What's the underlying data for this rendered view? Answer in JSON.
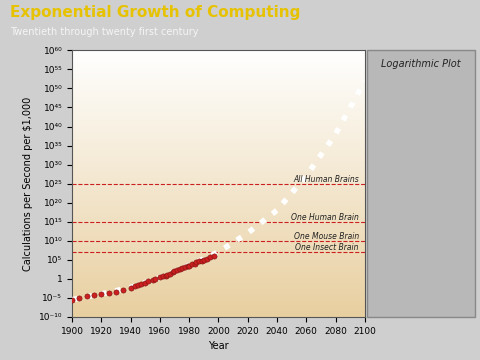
{
  "chart_data": {
    "type": "scatter",
    "title": "Exponential Growth of Computing",
    "subtitle": "Twentieth through twenty first century",
    "panel_title": "Logarithmic Plot",
    "x_label": "Year",
    "y_label": "Calculations per Second per $1,000",
    "log": "y",
    "xlim": [
      1900,
      2100
    ],
    "xticks": [
      1900,
      1920,
      1940,
      1960,
      1980,
      2000,
      2020,
      2040,
      2060,
      2080,
      2100
    ],
    "ylim": [
      1e-10,
      1e+60
    ],
    "yticks": [
      {
        "value": 1e-10,
        "label": "10⁻¹⁰"
      },
      {
        "value": 1e-05,
        "label": "10⁻⁵"
      },
      1,
      {
        "value": 100000.0,
        "label": "10⁵"
      },
      {
        "value": 10000000000.0,
        "label": "10¹⁰"
      },
      {
        "value": 1000000000000000.0,
        "label": "10¹⁵"
      },
      {
        "value": 1e+20,
        "label": "10²⁰"
      },
      {
        "value": 1e+25,
        "label": "10²⁵"
      },
      {
        "value": 1e+30,
        "label": "10³⁰"
      },
      {
        "value": 1e+35,
        "label": "10³⁵"
      },
      {
        "value": 1e+40,
        "label": "10⁴⁰"
      },
      {
        "value": 1e+45,
        "label": "10⁴⁵"
      },
      {
        "value": 1e+50,
        "label": "10⁵⁰"
      },
      {
        "value": 1e+55,
        "label": "10⁵⁵"
      },
      {
        "value": 1e+60,
        "label": "10⁶⁰"
      }
    ],
    "series": [
      {
        "type": "scatter",
        "color": "#cc2020",
        "marker": "circle",
        "x": [
          1900,
          1905,
          1910,
          1915,
          1920,
          1925,
          1930,
          1935,
          1940,
          1943,
          1945,
          1947,
          1950,
          1952,
          1955,
          1957,
          1960,
          1962,
          1964,
          1965,
          1967,
          1969,
          1970,
          1972,
          1974,
          1975,
          1977,
          1979,
          1980,
          1982,
          1984,
          1985,
          1987,
          1989,
          1990,
          1992,
          1994,
          1997
        ],
        "values": [
          3e-06,
          1e-05,
          3e-05,
          5e-05,
          0.0001,
          0.0002,
          0.0003,
          0.001,
          0.003,
          0.01,
          0.03,
          0.05,
          0.1,
          0.2,
          0.5,
          0.8,
          3,
          5,
          6,
          10,
          20,
          50,
          100,
          200,
          400,
          600,
          1000,
          2000,
          3000,
          6000,
          10000,
          20000,
          40000,
          60000,
          100000,
          200000,
          400000,
          1000000
        ]
      },
      {
        "type": "line",
        "color": "#ffffff",
        "line_style": "dotted",
        "x": [
          1900,
          1920,
          1940,
          1960,
          1980,
          2000,
          2020,
          2040,
          2060,
          2080,
          2100
        ],
        "values": [
          3e-06,
          0.0001,
          0.005,
          2,
          3000,
          10000000.0,
          1000000000000.0,
          1e+18,
          1e+27,
          1e+38,
          1e+52
        ]
      }
    ],
    "reference_lines": [
      {
        "label": "All Human Brains",
        "value": 1e+25,
        "color": "#cc2020",
        "line_style": "dashed"
      },
      {
        "label": "One Human Brain",
        "value": 1000000000000000.0,
        "color": "#cc2020",
        "line_style": "dashed"
      },
      {
        "label": "One Mouse Brain",
        "value": 10000000000.0,
        "color": "#cc2020",
        "line_style": "dashed"
      },
      {
        "label": "One Insect Brain",
        "value": 10000000.0,
        "color": "#cc2020",
        "line_style": "dashed"
      }
    ]
  }
}
